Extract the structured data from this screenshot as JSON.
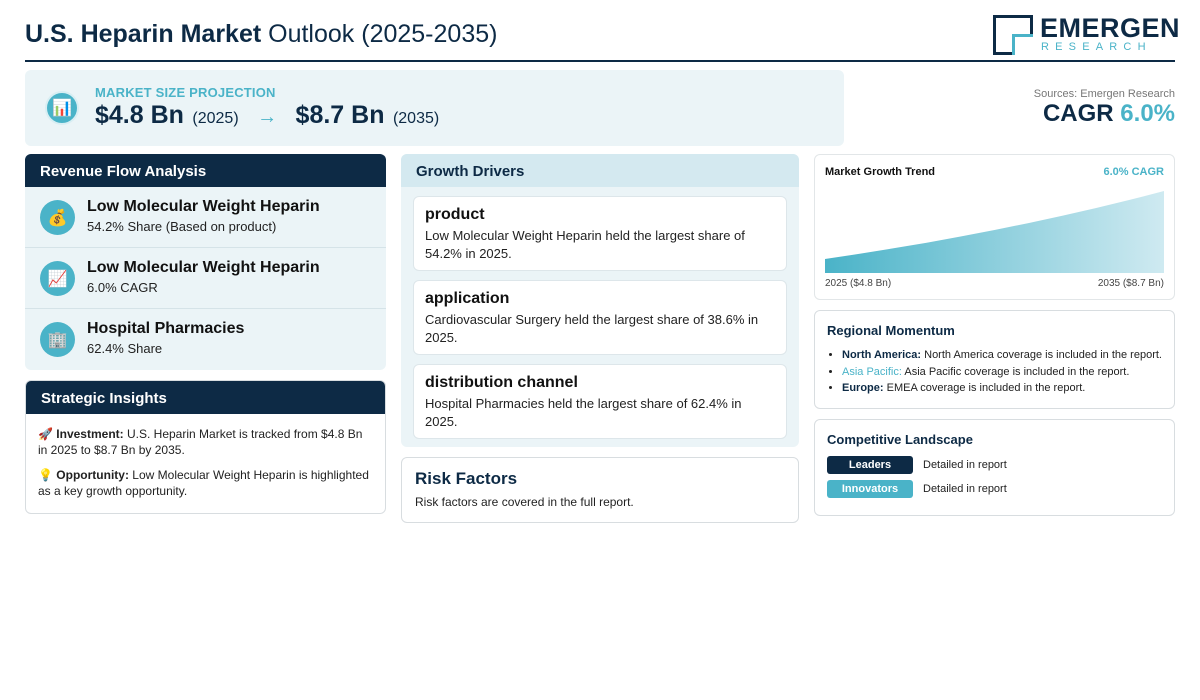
{
  "header": {
    "title_bold": "U.S. Heparin Market",
    "title_light": "Outlook (2025-2035)",
    "logo_name": "EMERGEN",
    "logo_sub": "RESEARCH"
  },
  "projection": {
    "icon": "bar-chart-icon",
    "label": "MARKET SIZE PROJECTION",
    "start_value": "$4.8 Bn",
    "start_year": "(2025)",
    "arrow": "→",
    "end_value": "$8.7 Bn",
    "end_year": "(2035)"
  },
  "summary": {
    "sources": "Sources: Emergen Research",
    "cagr_label": "CAGR",
    "cagr_value": "6.0%"
  },
  "revenue_flow": {
    "heading": "Revenue Flow Analysis",
    "items": [
      {
        "icon": "money-bag-icon",
        "glyph": "💰",
        "title": "Low Molecular Weight Heparin",
        "sub": "54.2% Share (Based on product)"
      },
      {
        "icon": "trend-chart-icon",
        "glyph": "📈",
        "title": "Low Molecular Weight Heparin",
        "sub": "6.0% CAGR"
      },
      {
        "icon": "hospital-icon",
        "glyph": "🏢",
        "title": "Hospital Pharmacies",
        "sub": "62.4% Share"
      }
    ]
  },
  "strategic": {
    "heading": "Strategic Insights",
    "investment_icon": "🚀",
    "investment_label": "Investment:",
    "investment_text": "U.S. Heparin Market is tracked from $4.8 Bn in 2025 to $8.7 Bn by 2035.",
    "opportunity_icon": "💡",
    "opportunity_label": "Opportunity:",
    "opportunity_text": "Low Molecular Weight Heparin is highlighted as a key growth opportunity."
  },
  "drivers": {
    "heading": "Growth Drivers",
    "cards": [
      {
        "title": "product",
        "text": "Low Molecular Weight Heparin held the largest share of 54.2% in 2025."
      },
      {
        "title": "application",
        "text": "Cardiovascular Surgery held the largest share of 38.6% in 2025."
      },
      {
        "title": "distribution channel",
        "text": "Hospital Pharmacies held the largest share of 62.4% in 2025."
      }
    ]
  },
  "risk": {
    "title": "Risk Factors",
    "text": "Risk factors are covered in the full report."
  },
  "trend": {
    "title": "Market Growth Trend",
    "cagr": "6.0% CAGR",
    "start_label": "2025 ($4.8 Bn)",
    "end_label": "2035 ($8.7 Bn)"
  },
  "chart_data": {
    "type": "area",
    "x": [
      2025,
      2035
    ],
    "values": [
      4.8,
      8.7
    ],
    "title": "Market Growth Trend",
    "xlabel": "",
    "ylabel": "",
    "grid": false
  },
  "regional": {
    "title": "Regional Momentum",
    "items": [
      {
        "label": "North America:",
        "text": "North America coverage is included in the report."
      },
      {
        "label": "Asia Pacific:",
        "text": "Asia Pacific coverage is included in the report."
      },
      {
        "label": "Europe:",
        "text": "EMEA coverage is included in the report."
      }
    ]
  },
  "competitive": {
    "title": "Competitive Landscape",
    "rows": [
      {
        "badge": "Leaders",
        "color": "#0d2a45",
        "text": "Detailed in report"
      },
      {
        "badge": "Innovators",
        "color": "#4ab3c8",
        "text": "Detailed in report"
      }
    ]
  },
  "colors": {
    "navy": "#0d2a45",
    "accent": "#4ab3c8",
    "panel_bg": "#ebf4f7"
  }
}
